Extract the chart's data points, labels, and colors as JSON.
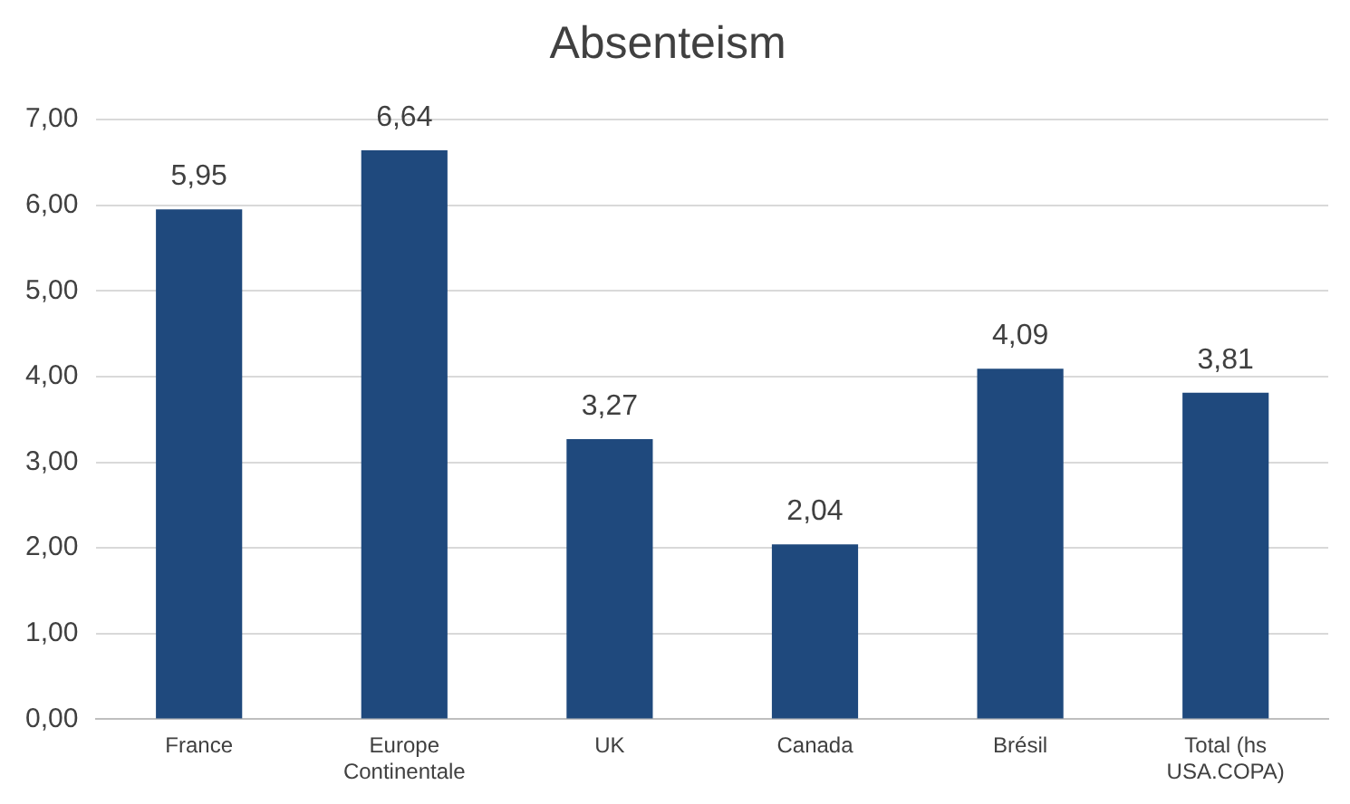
{
  "chart_data": {
    "type": "bar",
    "title": "Absenteism",
    "categories": [
      "France",
      "Europe Continentale",
      "UK",
      "Canada",
      "Brésil",
      "Total (hs USA.COPA)"
    ],
    "values": [
      5.95,
      6.64,
      3.27,
      2.04,
      4.09,
      3.81
    ],
    "value_labels": [
      "5,95",
      "6,64",
      "3,27",
      "2,04",
      "4,09",
      "3,81"
    ],
    "color": "#1f497d",
    "ylim": [
      0,
      7
    ],
    "yticks": [
      {
        "value": 0,
        "label": "0,00"
      },
      {
        "value": 1,
        "label": "1,00"
      },
      {
        "value": 2,
        "label": "2,00"
      },
      {
        "value": 3,
        "label": "3,00"
      },
      {
        "value": 4,
        "label": "4,00"
      },
      {
        "value": 5,
        "label": "5,00"
      },
      {
        "value": 6,
        "label": "6,00"
      },
      {
        "value": 7,
        "label": "7,00"
      }
    ],
    "grid": "y",
    "legend": false
  }
}
